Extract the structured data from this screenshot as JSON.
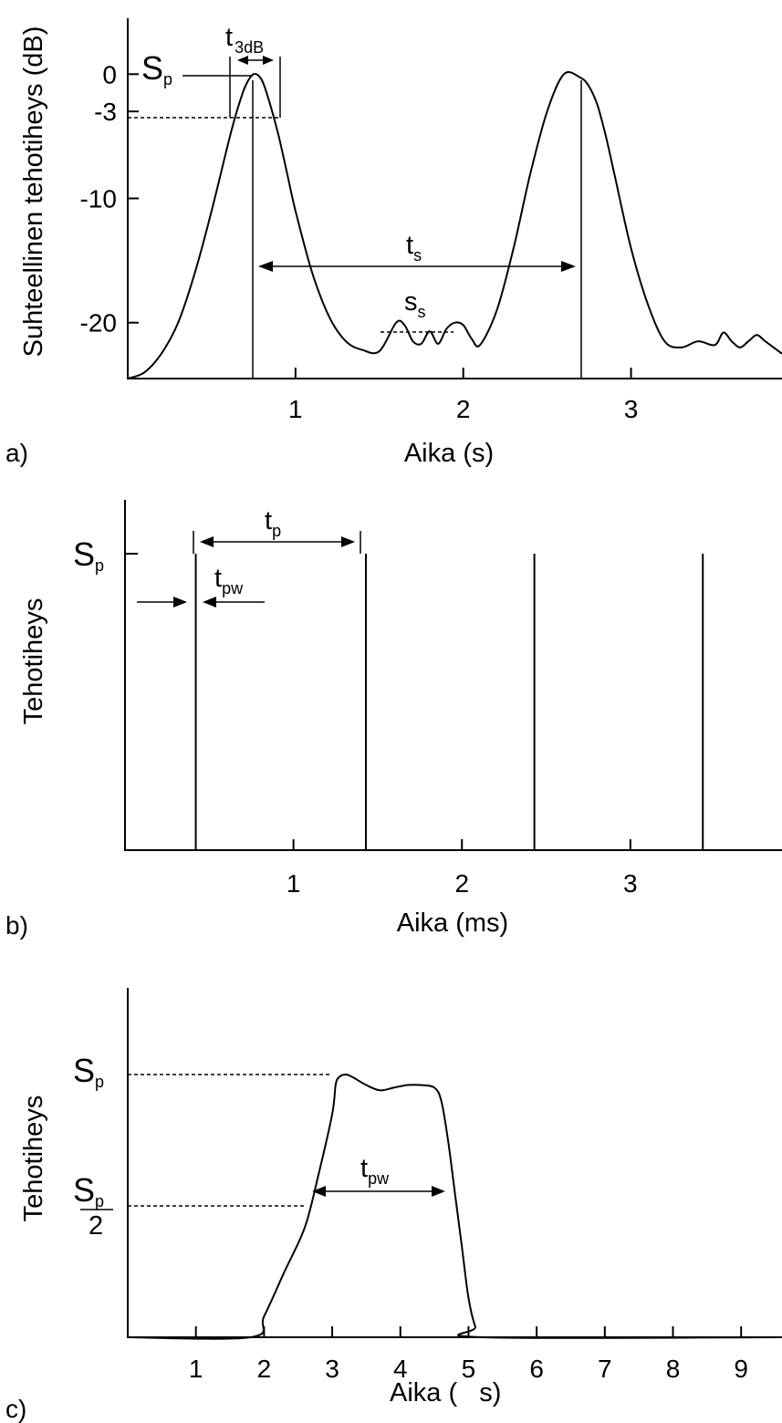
{
  "chart_data": [
    {
      "panel_label": "a)",
      "type": "line",
      "xlabel": "Aika (s)",
      "ylabel": "Suhteellinen tehotiheys (dB)",
      "x_ticks": [
        "1",
        "2",
        "3"
      ],
      "y_ticks": [
        "0",
        "-3",
        "-10",
        "-20"
      ],
      "y_tick_values": [
        0,
        -3,
        -10,
        -20
      ],
      "xlim": [
        0,
        3.9
      ],
      "ylim": [
        -24.5,
        4.5
      ],
      "series": [
        {
          "x": [
            0,
            0.1,
            0.2,
            0.3,
            0.4,
            0.5,
            0.6,
            0.65,
            0.7,
            0.75,
            0.8,
            0.85,
            0.9,
            0.95,
            1.0,
            1.1,
            1.2,
            1.3,
            1.4,
            1.5,
            1.6,
            1.65,
            1.7,
            1.75,
            1.8,
            1.85,
            1.9,
            1.95,
            2.0,
            2.05,
            2.1,
            2.2,
            2.3,
            2.4,
            2.5,
            2.6,
            2.7,
            2.75,
            2.8,
            2.85,
            2.9,
            3.0,
            3.1,
            3.2,
            3.3,
            3.4,
            3.5,
            3.55,
            3.6,
            3.65,
            3.7,
            3.75,
            3.8,
            3.9
          ],
          "y": [
            -24.5,
            -24,
            -22.5,
            -20,
            -16,
            -11,
            -5.5,
            -3,
            -1,
            0,
            -0.5,
            -2.5,
            -5,
            -8,
            -11,
            -16,
            -19.5,
            -21.5,
            -22.2,
            -22.3,
            -20,
            -20.2,
            -21.5,
            -21.7,
            -20.7,
            -21.7,
            -20.5,
            -20,
            -20.2,
            -21.3,
            -21.8,
            -19,
            -14,
            -8,
            -3,
            0,
            -0.3,
            -1,
            -2.5,
            -5,
            -8,
            -14,
            -18.5,
            -21.5,
            -22,
            -21.5,
            -21.8,
            -20.8,
            -21.5,
            -22,
            -21.5,
            -21,
            -21.5,
            -22.5
          ]
        }
      ],
      "annotations": [
        "S",
        "p",
        "t",
        "3dB",
        "t",
        "s",
        "s",
        "s"
      ]
    },
    {
      "panel_label": "b)",
      "type": "bar",
      "xlabel": "Aika (ms)",
      "ylabel": "Tehotiheys",
      "x_ticks": [
        "1",
        "2",
        "3"
      ],
      "y_ticks": [
        "S"
      ],
      "y_tick_subscript": "p",
      "xlim": [
        0,
        3.9
      ],
      "pulses_x": [
        0.42,
        1.43,
        2.43,
        3.43
      ],
      "pulse_height": 1,
      "annotations": [
        "t",
        "p",
        "t",
        "pw"
      ]
    },
    {
      "panel_label": "c)",
      "type": "line",
      "xlabel": "Aika (   s)",
      "ylabel": "Tehotiheys",
      "x_ticks": [
        "1",
        "2",
        "3",
        "4",
        "5",
        "6",
        "7",
        "8",
        "9"
      ],
      "y_ticks": [
        "S",
        "S",
        "2"
      ],
      "y_tick_subscripts": [
        "p",
        "p"
      ],
      "xlim": [
        0,
        9.6
      ],
      "ylim": [
        0,
        1.33
      ],
      "series": [
        {
          "x": [
            0,
            1.8,
            2.0,
            2.3,
            2.6,
            2.8,
            3.0,
            3.05,
            3.1,
            3.2,
            3.3,
            3.5,
            3.7,
            3.9,
            4.1,
            4.3,
            4.5,
            4.6,
            4.7,
            4.8,
            4.9,
            5.0,
            5.1,
            5.2,
            9.6
          ],
          "y": [
            0,
            0,
            0.08,
            0.25,
            0.42,
            0.62,
            0.85,
            0.96,
            0.99,
            1.0,
            0.99,
            0.96,
            0.94,
            0.95,
            0.96,
            0.96,
            0.95,
            0.9,
            0.75,
            0.55,
            0.35,
            0.15,
            0.04,
            0,
            0
          ]
        }
      ],
      "levels": [
        1,
        0.5
      ],
      "annotations": [
        "t",
        "pw"
      ]
    }
  ]
}
